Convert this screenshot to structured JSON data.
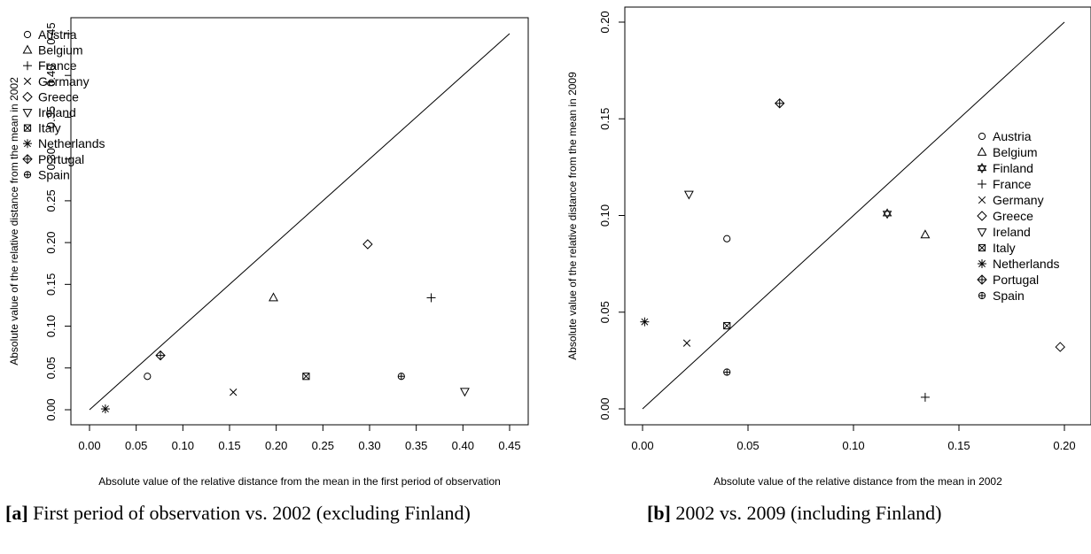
{
  "chart_data": [
    {
      "type": "scatter",
      "xlabel": "Absolute value of the relative distance from the mean in the first period of observation",
      "ylabel": "Absolute value of the relative distance from the mean in 2002",
      "xlim": [
        0,
        0.45
      ],
      "ylim": [
        0,
        0.45
      ],
      "xticks": [
        "0.00",
        "0.05",
        "0.10",
        "0.15",
        "0.20",
        "0.25",
        "0.30",
        "0.35",
        "0.40",
        "0.45"
      ],
      "yticks": [
        "0.00",
        "0.05",
        "0.10",
        "0.15",
        "0.20",
        "0.25",
        "0.30",
        "0.35",
        "0.40",
        "0.45"
      ],
      "reference_line": "y = x",
      "legend_position": "top-left",
      "points": [
        {
          "label": "Austria",
          "symbol": "circle",
          "x": 0.062,
          "y": 0.04
        },
        {
          "label": "Belgium",
          "symbol": "triangle-up",
          "x": 0.197,
          "y": 0.134
        },
        {
          "label": "France",
          "symbol": "plus",
          "x": 0.366,
          "y": 0.134
        },
        {
          "label": "Germany",
          "symbol": "cross",
          "x": 0.154,
          "y": 0.021
        },
        {
          "label": "Greece",
          "symbol": "diamond",
          "x": 0.298,
          "y": 0.198
        },
        {
          "label": "Ireland",
          "symbol": "triangle-down",
          "x": 0.402,
          "y": 0.022
        },
        {
          "label": "Italy",
          "symbol": "square-cross",
          "x": 0.232,
          "y": 0.04
        },
        {
          "label": "Netherlands",
          "symbol": "asterisk",
          "x": 0.017,
          "y": 0.001
        },
        {
          "label": "Portugal",
          "symbol": "diamond-plus",
          "x": 0.076,
          "y": 0.065
        },
        {
          "label": "Spain",
          "symbol": "circle-plus",
          "x": 0.334,
          "y": 0.04
        }
      ]
    },
    {
      "type": "scatter",
      "xlabel": "Absolute value of the relative distance from the mean in 2002",
      "ylabel": "Absolute value of the relative distance from the mean in 2009",
      "xlim": [
        0,
        0.2
      ],
      "ylim": [
        0,
        0.2
      ],
      "xticks": [
        "0.00",
        "0.05",
        "0.10",
        "0.15",
        "0.20"
      ],
      "yticks": [
        "0.00",
        "0.05",
        "0.10",
        "0.15",
        "0.20"
      ],
      "reference_line": "y = x",
      "legend_position": "right",
      "points": [
        {
          "label": "Austria",
          "symbol": "circle",
          "x": 0.04,
          "y": 0.088
        },
        {
          "label": "Belgium",
          "symbol": "triangle-up",
          "x": 0.134,
          "y": 0.09
        },
        {
          "label": "Finland",
          "symbol": "star-of-david",
          "x": 0.116,
          "y": 0.101
        },
        {
          "label": "France",
          "symbol": "plus",
          "x": 0.134,
          "y": 0.006
        },
        {
          "label": "Germany",
          "symbol": "cross",
          "x": 0.021,
          "y": 0.034
        },
        {
          "label": "Greece",
          "symbol": "diamond",
          "x": 0.198,
          "y": 0.032
        },
        {
          "label": "Ireland",
          "symbol": "triangle-down",
          "x": 0.022,
          "y": 0.111
        },
        {
          "label": "Italy",
          "symbol": "square-cross",
          "x": 0.04,
          "y": 0.043
        },
        {
          "label": "Netherlands",
          "symbol": "asterisk",
          "x": 0.001,
          "y": 0.045
        },
        {
          "label": "Portugal",
          "symbol": "diamond-plus",
          "x": 0.065,
          "y": 0.158
        },
        {
          "label": "Spain",
          "symbol": "circle-plus",
          "x": 0.04,
          "y": 0.019
        }
      ]
    }
  ],
  "captions": [
    {
      "tag": "[a]",
      "text": "First period of observation vs.  2002 (excluding Finland)"
    },
    {
      "tag": "[b]",
      "text": "2002 vs. 2009 (including Finland)"
    }
  ]
}
